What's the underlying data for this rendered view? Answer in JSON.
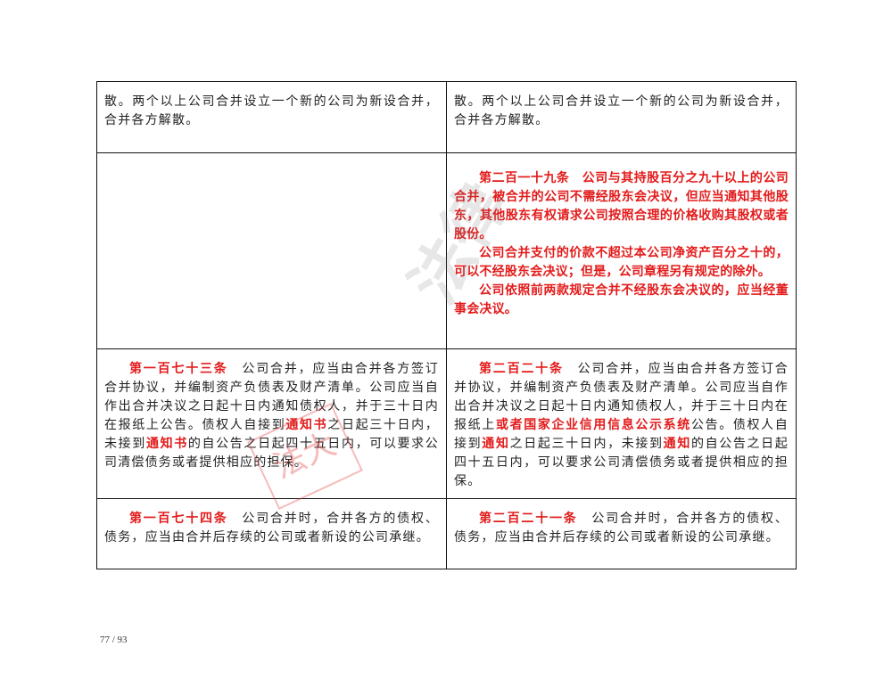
{
  "rows": [
    {
      "left": {
        "text": "散。两个以上公司合并设立一个新的公司为新设合并，合并各方解散。"
      },
      "right": {
        "text": "散。两个以上公司合并设立一个新的公司为新设合并，合并各方解散。"
      }
    },
    {
      "left": {
        "text": ""
      },
      "right": {
        "paragraphs": [
          "第二百一十九条　公司与其持股百分之九十以上的公司合并，被合并的公司不需经股东会决议，但应当通知其他股东，其他股东有权请求公司按照合理的价格收购其股权或者股份。",
          "公司合并支付的价款不超过本公司净资产百分之十的，可以不经股东会决议；但是，公司章程另有规定的除外。",
          "公司依照前两款规定合并不经股东会决议的，应当经董事会决议。"
        ]
      }
    },
    {
      "left": {
        "article": "第一百七十三条",
        "t1": "　公司合并，应当由合并各方签订合并协议，并编制资产负债表及财产清单。公司应当自作出合并决议之日起十日内通知债权人，并于三十日内在报纸上公告。债权人自接到",
        "h1": "通知书",
        "t2": "之日起三十日内，未接到",
        "h2": "通知书",
        "t3": "的自公告之日起四十五日内，可以要求公司清偿债务或者提供相应的担保。"
      },
      "right": {
        "article": "第二百二十条",
        "t1": "　公司合并，应当由合并各方签订合并协议，并编制资产负债表及财产清单。公司应当自作出合并决议之日起十日内通知债权人，并于三十日内在报纸上",
        "h0": "或者国家企业信用信息公示系统",
        "t1b": "公告。债权人自接到",
        "h1": "通知",
        "t2": "之日起三十日内，未接到",
        "h2": "通知",
        "t3": "的自公告之日起四十五日内，可以要求公司清偿债务或者提供相应的担保。"
      }
    },
    {
      "left": {
        "article": "第一百七十四条",
        "text": "　公司合并时，合并各方的债权、债务，应当由合并后存续的公司或者新设的公司承继。"
      },
      "right": {
        "article": "第二百二十一条",
        "text": "　公司合并时，合并各方的债权、债务，应当由合并后存续的公司或者新设的公司承继。"
      }
    }
  ],
  "page_number": "77 / 93",
  "colors": {
    "highlight": "#e31b1b",
    "text": "#222222"
  }
}
